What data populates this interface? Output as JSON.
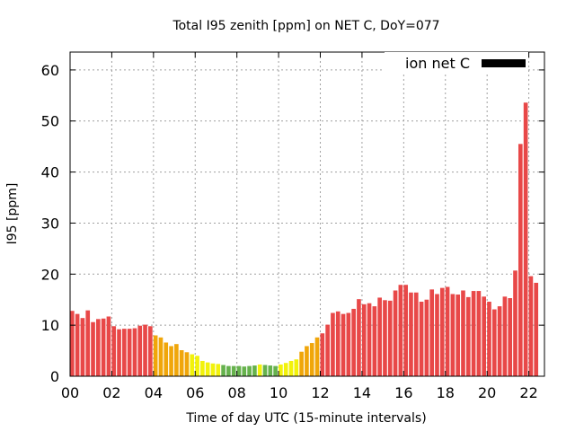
{
  "chart_data": {
    "type": "bar",
    "title": "Total I95 zenith [ppm] on NET C, DoY=077",
    "xlabel": "Time of day UTC (15-minute intervals)",
    "ylabel": "I95 [ppm]",
    "legend": {
      "label": "ion net C",
      "color": "#000000",
      "placement": "top-right"
    },
    "grid": true,
    "ylim": [
      0,
      63.5
    ],
    "xlim": [
      0,
      22.75
    ],
    "bin_hours": 0.25,
    "x_ticks": [
      "00",
      "02",
      "04",
      "06",
      "08",
      "10",
      "12",
      "14",
      "16",
      "18",
      "20",
      "22"
    ],
    "y_ticks": [
      "0",
      "10",
      "20",
      "30",
      "40",
      "50",
      "60"
    ],
    "color_scale": [
      {
        "max": 2.2,
        "color": "#66b24d"
      },
      {
        "max": 4.5,
        "color": "#f2f20a"
      },
      {
        "max": 8.0,
        "color": "#f0a60a"
      },
      {
        "max": 1000,
        "color": "#e84848"
      }
    ],
    "values": [
      12.8,
      12.2,
      11.4,
      12.9,
      10.6,
      11.2,
      11.3,
      11.7,
      9.8,
      9.2,
      9.3,
      9.3,
      9.4,
      9.9,
      10.1,
      9.8,
      8.0,
      7.6,
      6.6,
      5.9,
      6.3,
      5.1,
      4.7,
      4.3,
      4.0,
      3.0,
      2.7,
      2.5,
      2.4,
      2.2,
      2.0,
      2.0,
      2.0,
      1.9,
      2.0,
      2.1,
      2.3,
      2.2,
      2.1,
      2.0,
      2.3,
      2.6,
      3.0,
      3.3,
      4.8,
      5.9,
      6.5,
      7.6,
      8.4,
      10.1,
      12.4,
      12.7,
      12.2,
      12.4,
      13.2,
      15.1,
      14.1,
      14.3,
      13.7,
      15.4,
      14.9,
      14.8,
      16.8,
      17.9,
      17.9,
      16.4,
      16.4,
      14.6,
      15.0,
      17.0,
      16.1,
      17.3,
      17.5,
      16.1,
      16.0,
      16.8,
      15.5,
      16.7,
      16.7,
      15.6,
      14.6,
      13.1,
      13.7,
      15.6,
      15.3,
      20.7,
      45.5,
      53.6,
      19.6,
      18.3
    ]
  }
}
